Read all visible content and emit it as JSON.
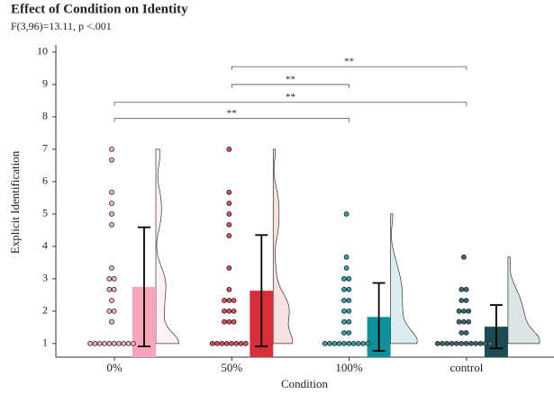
{
  "chart_data": {
    "type": "raincloud",
    "title": "Effect of Condition on Identity",
    "subtitle": "F(3,96)=13.11, p <.001",
    "x_label": "Condition",
    "y_label": "Explicit Identification",
    "categories": [
      "0%",
      "50%",
      "100%",
      "control"
    ],
    "colors": [
      "#f4a6b8",
      "#d62f3a",
      "#0f8f97",
      "#1b4c54"
    ],
    "means": [
      2.75,
      2.63,
      1.82,
      1.52
    ],
    "errors": [
      1.84,
      1.72,
      1.05,
      0.67
    ],
    "points": [
      [
        1,
        1,
        1,
        1,
        1,
        1,
        1,
        1,
        1,
        1,
        1.67,
        2,
        2,
        2.33,
        2.67,
        2.67,
        3,
        3,
        3.33,
        4.67,
        5,
        5.33,
        5.67,
        6.67,
        7
      ],
      [
        1,
        1,
        1,
        1,
        1,
        1,
        1,
        1,
        1.67,
        1.67,
        1.67,
        2,
        2,
        2,
        2.33,
        2.33,
        2.33,
        2.67,
        3.33,
        4.33,
        4.67,
        5,
        5.33,
        5.67,
        7
      ],
      [
        1,
        1,
        1,
        1,
        1,
        1,
        1,
        1,
        1,
        1,
        1.33,
        1.33,
        1.67,
        1.67,
        2,
        2,
        2.33,
        2.33,
        2.67,
        2.67,
        3,
        3,
        3.33,
        3.67,
        5
      ],
      [
        1,
        1,
        1,
        1,
        1,
        1,
        1,
        1,
        1,
        1,
        1,
        1,
        1.33,
        1.33,
        1.67,
        1.67,
        1.67,
        2,
        2,
        2,
        2.33,
        2.33,
        2.67,
        2.67,
        3.67
      ]
    ],
    "brackets": [
      {
        "groups": [
          "50%",
          "control"
        ],
        "y": 9.55,
        "label": "**"
      },
      {
        "groups": [
          "50%",
          "100%"
        ],
        "y": 9.0,
        "label": "**"
      },
      {
        "groups": [
          "0%",
          "control"
        ],
        "y": 8.45,
        "label": "**"
      },
      {
        "groups": [
          "0%",
          "100%"
        ],
        "y": 7.95,
        "label": "**"
      }
    ],
    "ylim": [
      0.58,
      10.22
    ],
    "yticks": [
      1,
      2,
      3,
      4,
      5,
      6,
      7,
      8,
      9,
      10
    ]
  }
}
